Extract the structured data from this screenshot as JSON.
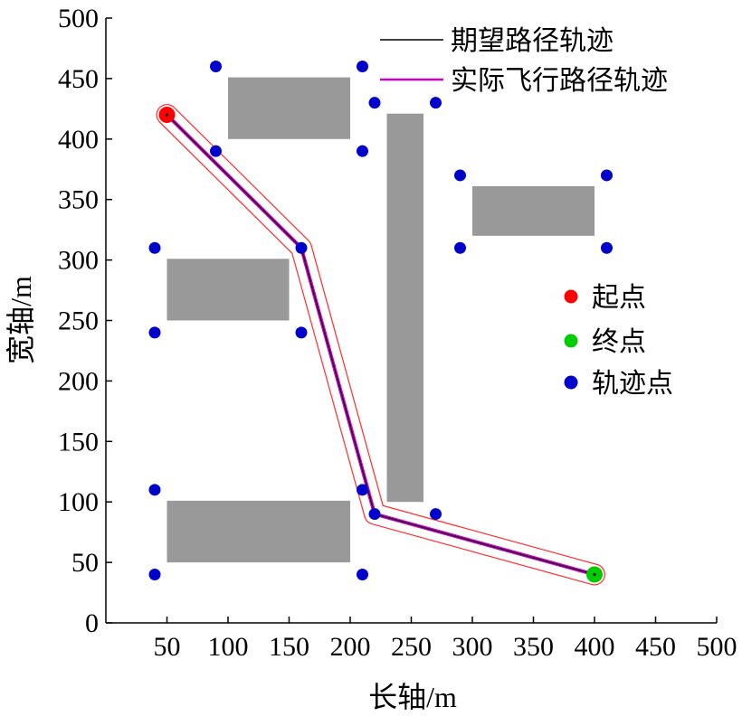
{
  "chart_data": {
    "type": "scatter",
    "xlabel": "长轴/m",
    "ylabel": "宽轴/m",
    "xlim": [
      0,
      500
    ],
    "ylim": [
      0,
      500
    ],
    "xticks": [
      50,
      100,
      150,
      200,
      250,
      300,
      350,
      400,
      450,
      500
    ],
    "yticks": [
      0,
      50,
      100,
      150,
      200,
      250,
      300,
      350,
      400,
      450,
      500
    ],
    "grid": false,
    "obstacles": [
      {
        "x": [
          100,
          200
        ],
        "y": [
          400,
          451
        ]
      },
      {
        "x": [
          230,
          260
        ],
        "y": [
          100,
          421
        ]
      },
      {
        "x": [
          300,
          400
        ],
        "y": [
          320,
          361
        ]
      },
      {
        "x": [
          50,
          150
        ],
        "y": [
          250,
          301
        ]
      },
      {
        "x": [
          50,
          200
        ],
        "y": [
          50,
          101
        ]
      }
    ],
    "series": [
      {
        "name": "期望路径轨迹",
        "kind": "line",
        "color": "#000000",
        "x": [
          50,
          160,
          220,
          400
        ],
        "y": [
          420,
          310,
          90,
          40
        ]
      },
      {
        "name": "实际飞行路径轨迹",
        "kind": "line",
        "color": "#cc00cc",
        "safety_color": "#ff3333",
        "x": [
          50,
          160,
          220,
          400
        ],
        "y": [
          420,
          310,
          90,
          40
        ]
      },
      {
        "name": "起点",
        "kind": "point",
        "color": "#ff0000",
        "x": [
          50
        ],
        "y": [
          420
        ]
      },
      {
        "name": "终点",
        "kind": "point",
        "color": "#00cc00",
        "x": [
          400
        ],
        "y": [
          40
        ]
      },
      {
        "name": "轨迹点",
        "kind": "point",
        "color": "#0000cc",
        "x": [
          90,
          210,
          90,
          210,
          220,
          270,
          290,
          410,
          290,
          410,
          40,
          160,
          40,
          160,
          40,
          210,
          40,
          210,
          220,
          270
        ],
        "y": [
          460,
          460,
          390,
          390,
          430,
          430,
          370,
          370,
          310,
          310,
          310,
          310,
          240,
          240,
          110,
          110,
          40,
          40,
          90,
          90
        ]
      }
    ]
  }
}
